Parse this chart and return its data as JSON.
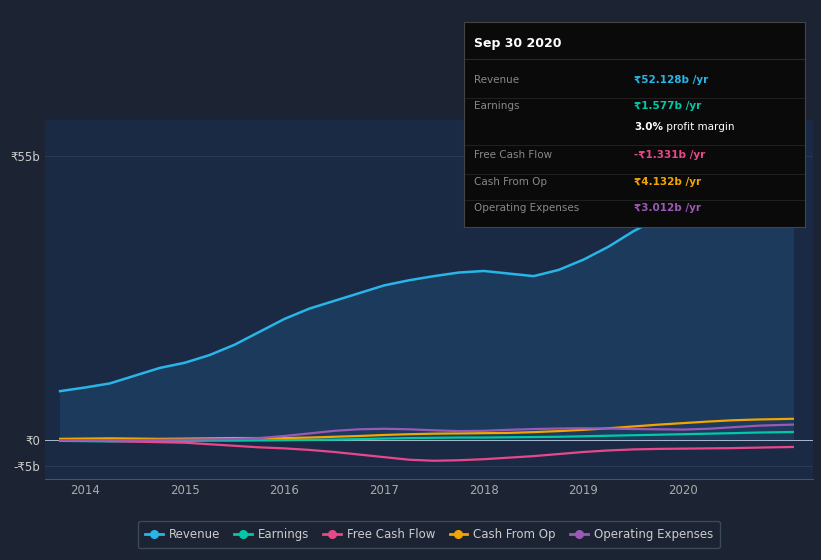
{
  "bg_color": "#1c2333",
  "plot_bg_color": "#1a2a45",
  "title": "Sep 30 2020",
  "x_ticks": [
    2014,
    2015,
    2016,
    2017,
    2018,
    2019,
    2020
  ],
  "y_ticks_labels": [
    "₹55b",
    "₹0",
    "-₹5b"
  ],
  "y_ticks_values": [
    55000000000,
    0,
    -5000000000
  ],
  "ylim": [
    -7500000000,
    62000000000
  ],
  "xlim_start": 2013.6,
  "xlim_end": 2021.3,
  "revenue": {
    "x": [
      2013.75,
      2014.0,
      2014.25,
      2014.5,
      2014.75,
      2015.0,
      2015.25,
      2015.5,
      2015.75,
      2016.0,
      2016.25,
      2016.5,
      2016.75,
      2017.0,
      2017.25,
      2017.5,
      2017.75,
      2018.0,
      2018.25,
      2018.5,
      2018.75,
      2019.0,
      2019.25,
      2019.5,
      2019.75,
      2020.0,
      2020.25,
      2020.5,
      2020.75,
      2021.1
    ],
    "y": [
      9500000000.0,
      10200000000.0,
      11000000000.0,
      12500000000.0,
      14000000000.0,
      15000000000.0,
      16500000000.0,
      18500000000.0,
      21000000000.0,
      23500000000.0,
      25500000000.0,
      27000000000.0,
      28500000000.0,
      30000000000.0,
      31000000000.0,
      31800000000.0,
      32500000000.0,
      32800000000.0,
      32300000000.0,
      31800000000.0,
      33000000000.0,
      35000000000.0,
      37500000000.0,
      40500000000.0,
      43000000000.0,
      45500000000.0,
      47500000000.0,
      49500000000.0,
      51000000000.0,
      52128000000.0
    ],
    "color": "#29b5e8",
    "fill_color": "#1b3a5c",
    "label": "Revenue"
  },
  "earnings": {
    "x": [
      2013.75,
      2014.0,
      2014.25,
      2014.5,
      2014.75,
      2015.0,
      2015.25,
      2015.5,
      2015.75,
      2016.0,
      2016.25,
      2016.5,
      2016.75,
      2017.0,
      2017.25,
      2017.5,
      2017.75,
      2018.0,
      2018.25,
      2018.5,
      2018.75,
      2019.0,
      2019.25,
      2019.5,
      2019.75,
      2020.0,
      2020.25,
      2020.5,
      2020.75,
      2021.1
    ],
    "y": [
      -150000000.0,
      -200000000.0,
      -250000000.0,
      -200000000.0,
      -150000000.0,
      -150000000.0,
      -100000000.0,
      -100000000.0,
      -50000000.0,
      0.0,
      50000000.0,
      100000000.0,
      200000000.0,
      300000000.0,
      400000000.0,
      450000000.0,
      500000000.0,
      500000000.0,
      550000000.0,
      600000000.0,
      650000000.0,
      750000000.0,
      850000000.0,
      950000000.0,
      1050000000.0,
      1150000000.0,
      1250000000.0,
      1350000000.0,
      1470000000.0,
      1577000000.0
    ],
    "color": "#00c9a7",
    "label": "Earnings"
  },
  "free_cash_flow": {
    "x": [
      2013.75,
      2014.0,
      2014.25,
      2014.5,
      2014.75,
      2015.0,
      2015.25,
      2015.5,
      2015.75,
      2016.0,
      2016.25,
      2016.5,
      2016.75,
      2017.0,
      2017.25,
      2017.5,
      2017.75,
      2018.0,
      2018.25,
      2018.5,
      2018.75,
      2019.0,
      2019.25,
      2019.5,
      2019.75,
      2020.0,
      2020.25,
      2020.5,
      2020.75,
      2021.1
    ],
    "y": [
      50000000.0,
      -50000000.0,
      -200000000.0,
      -300000000.0,
      -400000000.0,
      -500000000.0,
      -800000000.0,
      -1100000000.0,
      -1400000000.0,
      -1600000000.0,
      -1900000000.0,
      -2300000000.0,
      -2800000000.0,
      -3300000000.0,
      -3800000000.0,
      -4000000000.0,
      -3900000000.0,
      -3700000000.0,
      -3400000000.0,
      -3100000000.0,
      -2700000000.0,
      -2300000000.0,
      -2000000000.0,
      -1800000000.0,
      -1700000000.0,
      -1650000000.0,
      -1600000000.0,
      -1550000000.0,
      -1450000000.0,
      -1331000000.0
    ],
    "color": "#e8488a",
    "label": "Free Cash Flow"
  },
  "cash_from_op": {
    "x": [
      2013.75,
      2014.0,
      2014.25,
      2014.5,
      2014.75,
      2015.0,
      2015.25,
      2015.5,
      2015.75,
      2016.0,
      2016.25,
      2016.5,
      2016.75,
      2017.0,
      2017.25,
      2017.5,
      2017.75,
      2018.0,
      2018.25,
      2018.5,
      2018.75,
      2019.0,
      2019.25,
      2019.5,
      2019.75,
      2020.0,
      2020.25,
      2020.5,
      2020.75,
      2021.1
    ],
    "y": [
      250000000.0,
      300000000.0,
      350000000.0,
      300000000.0,
      250000000.0,
      300000000.0,
      350000000.0,
      400000000.0,
      400000000.0,
      400000000.0,
      500000000.0,
      650000000.0,
      800000000.0,
      1000000000.0,
      1150000000.0,
      1250000000.0,
      1300000000.0,
      1350000000.0,
      1400000000.0,
      1550000000.0,
      1750000000.0,
      2000000000.0,
      2300000000.0,
      2650000000.0,
      3000000000.0,
      3300000000.0,
      3600000000.0,
      3850000000.0,
      4000000000.0,
      4132000000.0
    ],
    "color": "#f0a500",
    "label": "Cash From Op"
  },
  "operating_expenses": {
    "x": [
      2013.75,
      2014.0,
      2014.25,
      2014.5,
      2014.75,
      2015.0,
      2015.25,
      2015.5,
      2015.75,
      2016.0,
      2016.25,
      2016.5,
      2016.75,
      2017.0,
      2017.25,
      2017.5,
      2017.75,
      2018.0,
      2018.25,
      2018.5,
      2018.75,
      2019.0,
      2019.25,
      2019.5,
      2019.75,
      2020.0,
      2020.25,
      2020.5,
      2020.75,
      2021.1
    ],
    "y": [
      0.0,
      0.0,
      0.0,
      0.0,
      50000000.0,
      100000000.0,
      150000000.0,
      200000000.0,
      400000000.0,
      800000000.0,
      1300000000.0,
      1800000000.0,
      2100000000.0,
      2200000000.0,
      2100000000.0,
      1900000000.0,
      1750000000.0,
      1800000000.0,
      2000000000.0,
      2150000000.0,
      2250000000.0,
      2300000000.0,
      2250000000.0,
      2150000000.0,
      2100000000.0,
      2050000000.0,
      2200000000.0,
      2500000000.0,
      2800000000.0,
      3012000000.0
    ],
    "color": "#9b59b6",
    "label": "Operating Expenses"
  },
  "legend_items": [
    {
      "label": "Revenue",
      "color": "#29b5e8"
    },
    {
      "label": "Earnings",
      "color": "#00c9a7"
    },
    {
      "label": "Free Cash Flow",
      "color": "#e8488a"
    },
    {
      "label": "Cash From Op",
      "color": "#f0a500"
    },
    {
      "label": "Operating Expenses",
      "color": "#9b59b6"
    }
  ],
  "info_box_rows": [
    {
      "label": "Revenue",
      "value": "₹52.128b /yr",
      "value_color": "#29b5e8",
      "bold_val": true,
      "has_divider": true
    },
    {
      "label": "Earnings",
      "value": "₹1.577b /yr",
      "value_color": "#00c9a7",
      "bold_val": true,
      "has_divider": false
    },
    {
      "label": "",
      "value": "3.0%",
      "value_color": "#ffffff",
      "bold_val": true,
      "value2": " profit margin",
      "value2_color": "#ffffff",
      "has_divider": true
    },
    {
      "label": "Free Cash Flow",
      "value": "-₹1.331b /yr",
      "value_color": "#e8488a",
      "bold_val": true,
      "has_divider": true
    },
    {
      "label": "Cash From Op",
      "value": "₹4.132b /yr",
      "value_color": "#f0a500",
      "bold_val": true,
      "has_divider": true
    },
    {
      "label": "Operating Expenses",
      "value": "₹3.012b /yr",
      "value_color": "#9b59b6",
      "bold_val": true,
      "has_divider": false
    }
  ]
}
